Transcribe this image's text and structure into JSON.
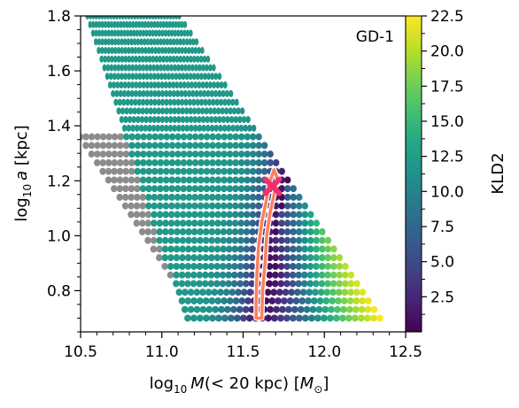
{
  "chart_data": {
    "type": "heatmap",
    "annotation": "GD-1",
    "x_tick_labels": [
      "10.5",
      "11.0",
      "11.5",
      "12.0",
      "12.5"
    ],
    "y_tick_labels": [
      "0.8",
      "1.0",
      "1.2",
      "1.4",
      "1.6",
      "1.8"
    ],
    "xlim": [
      10.5,
      12.5
    ],
    "ylim": [
      0.65,
      1.8
    ],
    "colorbar": {
      "label": "KLD2",
      "range": [
        0,
        22.5
      ],
      "colormap": "viridis",
      "tick_labels": [
        "2.5",
        "5.0",
        "7.5",
        "10.0",
        "12.5",
        "15.0",
        "17.5",
        "20.0",
        "22.5"
      ]
    },
    "best_fit_marker": {
      "x": 11.68,
      "y": 1.18,
      "color": "#f2306b"
    },
    "contour_color": "#ff7f5a",
    "contour": [
      [
        11.58,
        0.7
      ],
      [
        11.58,
        0.76
      ],
      [
        11.585,
        0.86
      ],
      [
        11.595,
        0.96
      ],
      [
        11.615,
        1.05
      ],
      [
        11.64,
        1.12
      ],
      [
        11.66,
        1.19
      ],
      [
        11.69,
        1.24
      ],
      [
        11.71,
        1.21
      ],
      [
        11.69,
        1.15
      ],
      [
        11.665,
        1.08
      ],
      [
        11.645,
        1.0
      ],
      [
        11.635,
        0.9
      ],
      [
        11.62,
        0.8
      ],
      [
        11.615,
        0.7
      ]
    ],
    "masked_color": "#8c8c8c"
  },
  "labels": {
    "xlabel_prefix": "log",
    "xlabel_sub": "10",
    "xlabel_var": "M",
    "xlabel_rest": "(< 20 kpc) [",
    "xlabel_unit": "M",
    "xlabel_unit_sub": "⊙",
    "xlabel_end": "]",
    "ylabel_prefix": "log",
    "ylabel_sub": "10",
    "ylabel_var": "a",
    "ylabel_rest": " [kpc]"
  }
}
